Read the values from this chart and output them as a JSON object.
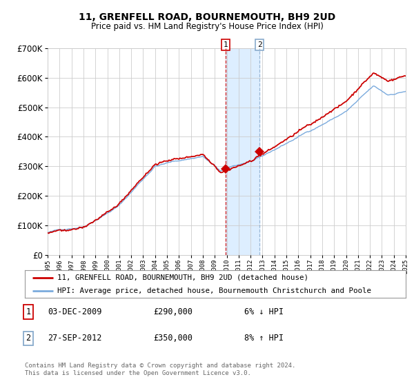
{
  "title": "11, GRENFELL ROAD, BOURNEMOUTH, BH9 2UD",
  "subtitle": "Price paid vs. HM Land Registry's House Price Index (HPI)",
  "legend_line1": "11, GRENFELL ROAD, BOURNEMOUTH, BH9 2UD (detached house)",
  "legend_line2": "HPI: Average price, detached house, Bournemouth Christchurch and Poole",
  "footer": "Contains HM Land Registry data © Crown copyright and database right 2024.\nThis data is licensed under the Open Government Licence v3.0.",
  "transaction1_date": "03-DEC-2009",
  "transaction1_price": 290000,
  "transaction2_date": "27-SEP-2012",
  "transaction2_price": 350000,
  "hpi_color": "#7aaadd",
  "property_color": "#cc0000",
  "bg_color": "#ffffff",
  "plot_bg_color": "#ffffff",
  "grid_color": "#cccccc",
  "highlight_color": "#ddeeff",
  "vline1_color": "#cc0000",
  "vline2_color": "#88aacc",
  "ylim": [
    0,
    700000
  ],
  "yticks": [
    0,
    100000,
    200000,
    300000,
    400000,
    500000,
    600000,
    700000
  ],
  "x_start_year": 1995,
  "x_end_year": 2025,
  "transaction1_x": 2009.917,
  "transaction2_x": 2012.75,
  "seed": 42
}
